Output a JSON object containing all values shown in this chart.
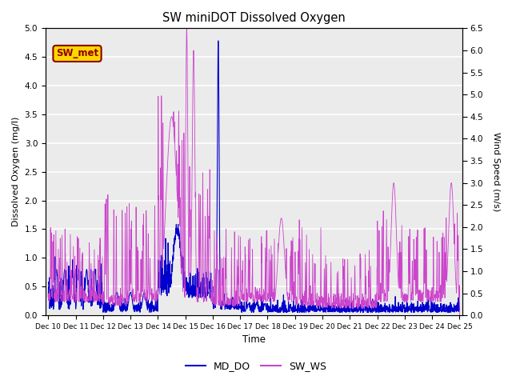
{
  "title": "SW miniDOT Dissolved Oxygen",
  "xlabel": "Time",
  "ylabel_left": "Dissolved Oxygen (mg/l)",
  "ylabel_right": "Wind Speed (m/s)",
  "annotation_text": "SW_met",
  "annotation_color": "#8B0000",
  "annotation_bg": "#FFD700",
  "left_ylim": [
    0.0,
    5.0
  ],
  "right_ylim": [
    0.0,
    6.5
  ],
  "left_yticks": [
    0.0,
    0.5,
    1.0,
    1.5,
    2.0,
    2.5,
    3.0,
    3.5,
    4.0,
    4.5,
    5.0
  ],
  "right_yticks": [
    0.0,
    0.5,
    1.0,
    1.5,
    2.0,
    2.5,
    3.0,
    3.5,
    4.0,
    4.5,
    5.0,
    5.5,
    6.0,
    6.5
  ],
  "md_do_color": "#0000CD",
  "sw_ws_color": "#CC44CC",
  "legend_labels": [
    "MD_DO",
    "SW_WS"
  ],
  "bg_color": "#EBEBEB",
  "grid_color": "white",
  "xtick_labels": [
    "Dec 10",
    "Dec 11",
    "Dec 12",
    "Dec 13",
    "Dec 14",
    "Dec 15",
    "Dec 16",
    "Dec 17",
    "Dec 18",
    "Dec 19",
    "Dec 20",
    "Dec 21",
    "Dec 22",
    "Dec 23",
    "Dec 24",
    "Dec 25"
  ],
  "seed": 42
}
